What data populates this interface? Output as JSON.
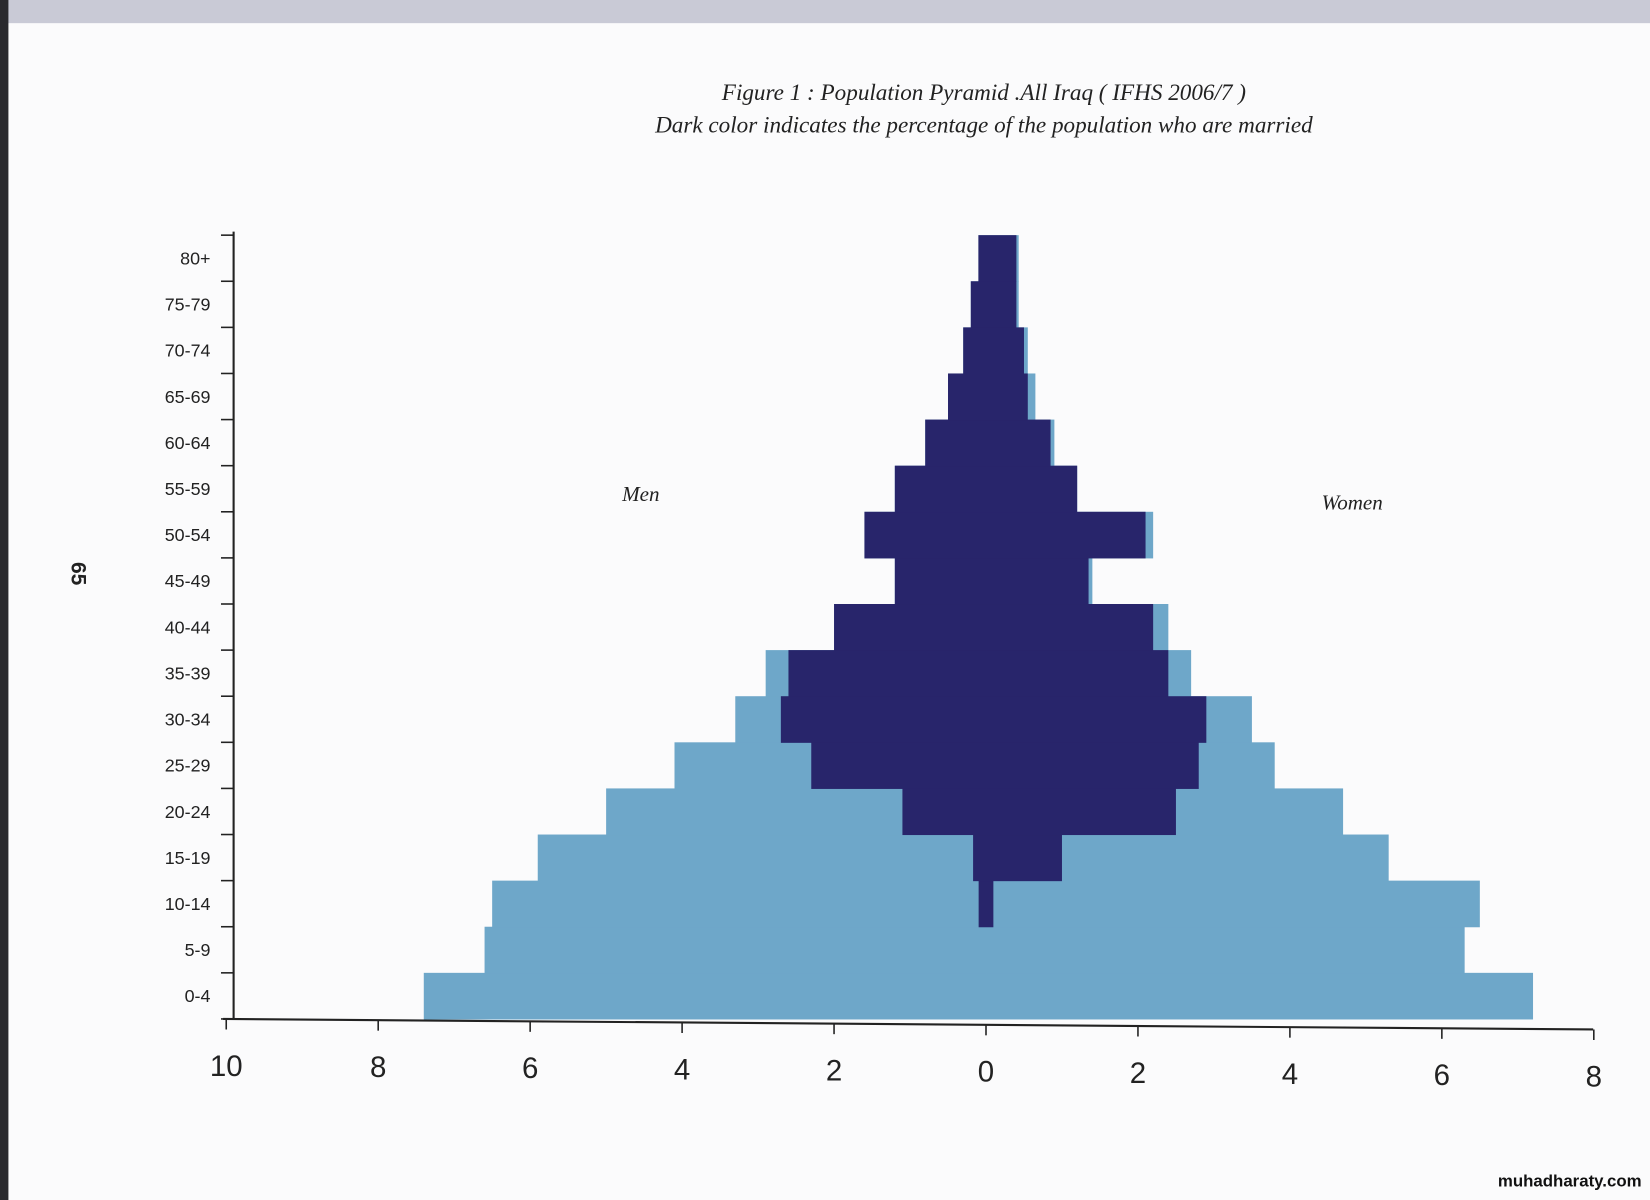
{
  "page_number": "65",
  "watermark": "muhadharaty.com",
  "chart_data": {
    "type": "bar",
    "orientation": "horizontal-pyramid",
    "title": "Figure 1 : Population Pyramid .All Iraq ( IFHS 2006/7 )",
    "subtitle": "Dark color indicates the percentage of the population who are married",
    "left_label": "Men",
    "right_label": "Women",
    "categories": [
      "0-4",
      "5-9",
      "10-14",
      "15-19",
      "20-24",
      "25-29",
      "30-34",
      "35-39",
      "40-44",
      "45-49",
      "50-54",
      "55-59",
      "60-64",
      "65-69",
      "70-74",
      "75-79",
      "80+"
    ],
    "x_tick_labels_left": [
      "10",
      "8",
      "6",
      "4",
      "2"
    ],
    "x_tick_labels_right": [
      "0",
      "2",
      "4",
      "6",
      "8"
    ],
    "xlim_men": [
      0,
      10
    ],
    "xlim_women": [
      0,
      8
    ],
    "grid": false,
    "colors": {
      "total": "#6ea7c9",
      "married": "#28256b"
    },
    "series": [
      {
        "side": "men",
        "kind": "total",
        "values": [
          7.4,
          6.6,
          6.5,
          5.9,
          5.0,
          4.1,
          3.3,
          2.9,
          2.0,
          1.2,
          1.6,
          1.2,
          0.8,
          0.5,
          0.3,
          0.2,
          0.1
        ]
      },
      {
        "side": "men",
        "kind": "married",
        "values": [
          0,
          0,
          0.03,
          0.17,
          1.1,
          2.3,
          2.7,
          2.6,
          2.0,
          1.2,
          1.6,
          1.2,
          0.8,
          0.5,
          0.3,
          0.2,
          0.1
        ]
      },
      {
        "side": "women",
        "kind": "total",
        "values": [
          7.2,
          6.3,
          6.5,
          5.3,
          4.7,
          3.8,
          3.5,
          2.7,
          2.4,
          1.4,
          2.2,
          1.2,
          0.9,
          0.65,
          0.55,
          0.43,
          0.43
        ]
      },
      {
        "side": "women",
        "kind": "married",
        "values": [
          0,
          0,
          0.08,
          1.0,
          2.5,
          2.8,
          2.9,
          2.4,
          2.2,
          1.35,
          2.1,
          1.2,
          0.85,
          0.55,
          0.5,
          0.4,
          0.4
        ]
      }
    ]
  }
}
